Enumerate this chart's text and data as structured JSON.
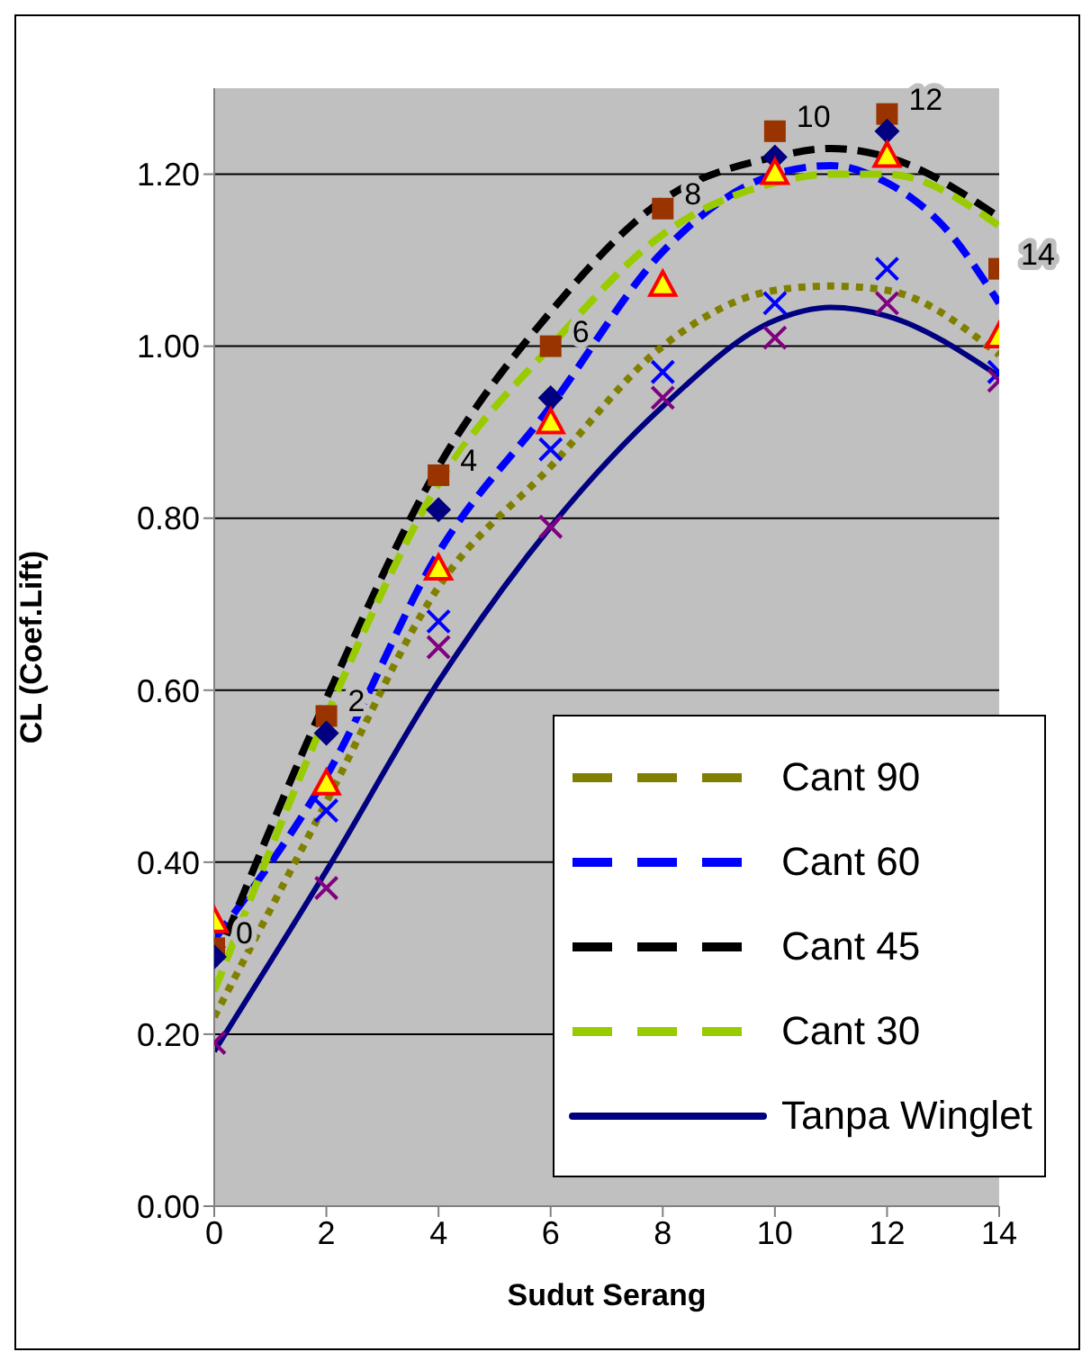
{
  "chart_data": {
    "type": "line",
    "xlabel": "Sudut Serang",
    "ylabel": "CL (Coef.Lift)",
    "xlim": [
      0,
      14
    ],
    "xticks": [
      0,
      2,
      4,
      6,
      8,
      10,
      12,
      14
    ],
    "ylim": [
      0,
      1.3
    ],
    "yticks": [
      {
        "value": 0,
        "label": "0.00"
      },
      {
        "value": 0.2,
        "label": "0.20"
      },
      {
        "value": 0.4,
        "label": "0.40"
      },
      {
        "value": 0.6,
        "label": "0.60"
      },
      {
        "value": 0.8,
        "label": "0.80"
      },
      {
        "value": 1,
        "label": "1.00"
      },
      {
        "value": 1.2,
        "label": "1.20"
      }
    ],
    "grid": "y",
    "legend": "bottom right",
    "series": [
      {
        "type": "scatter",
        "marker": "square",
        "color": "#993300",
        "x": [
          0,
          2,
          4,
          6,
          8,
          10,
          12,
          14
        ],
        "values": [
          0.3,
          0.57,
          0.85,
          1.0,
          1.16,
          1.25,
          1.27,
          1.09
        ]
      },
      {
        "type": "scatter",
        "marker": "diamond",
        "color": "#000080",
        "x": [
          0,
          2,
          4,
          6,
          10,
          12
        ],
        "values": [
          0.29,
          0.55,
          0.81,
          0.94,
          1.22,
          1.25
        ]
      },
      {
        "type": "scatter",
        "marker": "triangle",
        "color": "#ffff00",
        "x": [
          0,
          2,
          4,
          6,
          8,
          10,
          12,
          14
        ],
        "values": [
          0.33,
          0.49,
          0.74,
          0.91,
          1.07,
          1.2,
          1.22,
          1.01
        ]
      },
      {
        "type": "scatter",
        "marker": "cross",
        "color": "#0000ff",
        "x": [
          2,
          4,
          6,
          8,
          10,
          12,
          14
        ],
        "values": [
          0.46,
          0.68,
          0.88,
          0.97,
          1.05,
          1.09,
          0.97
        ]
      },
      {
        "type": "scatter",
        "marker": "cross",
        "color": "#800080",
        "x": [
          0,
          2,
          4,
          6,
          8,
          10,
          12,
          14
        ],
        "values": [
          0.19,
          0.37,
          0.65,
          0.79,
          0.94,
          1.01,
          1.05,
          0.96
        ]
      },
      {
        "name": "Cant 90",
        "line_style": "dotted",
        "color": "#808000",
        "x": [
          0,
          2,
          4,
          6,
          8,
          10,
          11,
          12,
          14
        ],
        "values": [
          0.22,
          0.47,
          0.72,
          0.86,
          1.0,
          1.065,
          1.07,
          1.065,
          0.99
        ]
      },
      {
        "name": "Cant 60",
        "line_style": "dashed",
        "color": "#0000ff",
        "x": [
          0,
          2,
          4,
          6,
          8,
          10,
          11,
          12,
          13,
          14
        ],
        "values": [
          0.31,
          0.5,
          0.76,
          0.93,
          1.11,
          1.2,
          1.21,
          1.19,
          1.14,
          1.05
        ]
      },
      {
        "name": "Cant 45",
        "line_style": "dashed",
        "color": "#000000",
        "x": [
          0,
          2,
          4,
          6,
          8,
          10,
          11,
          12,
          14
        ],
        "values": [
          0.28,
          0.59,
          0.86,
          1.04,
          1.17,
          1.22,
          1.23,
          1.22,
          1.15
        ]
      },
      {
        "name": "Cant 30",
        "line_style": "dashed",
        "color": "#99cc00",
        "x": [
          0,
          2,
          4,
          6,
          8,
          10,
          11,
          12,
          14
        ],
        "values": [
          0.25,
          0.57,
          0.84,
          1.0,
          1.13,
          1.19,
          1.2,
          1.2,
          1.14
        ]
      },
      {
        "name": "Tanpa Winglet",
        "line_style": "solid",
        "color": "#000080",
        "x": [
          0,
          2,
          4,
          6,
          8,
          10,
          11,
          12,
          14
        ],
        "values": [
          0.18,
          0.39,
          0.61,
          0.79,
          0.93,
          1.03,
          1.045,
          1.035,
          0.965
        ]
      }
    ],
    "annotations": [
      {
        "text": "0",
        "x": 0,
        "y": 0.3
      },
      {
        "text": "2",
        "x": 2,
        "y": 0.57
      },
      {
        "text": "4",
        "x": 4,
        "y": 0.85
      },
      {
        "text": "6",
        "x": 6,
        "y": 1.0
      },
      {
        "text": "8",
        "x": 8,
        "y": 1.16
      },
      {
        "text": "10",
        "x": 10,
        "y": 1.25
      },
      {
        "text": "12",
        "x": 12,
        "y": 1.27
      },
      {
        "text": "14",
        "x": 14,
        "y": 1.09
      }
    ]
  }
}
